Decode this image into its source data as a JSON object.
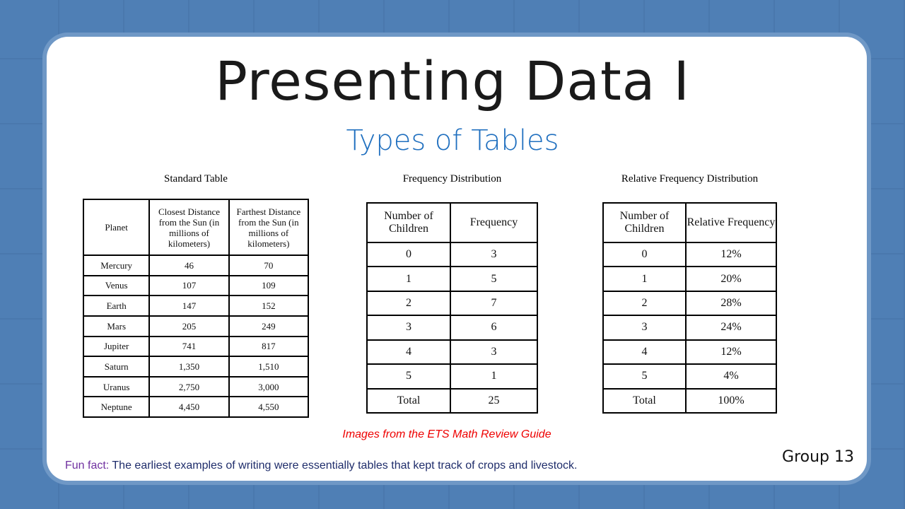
{
  "title": "Presenting Data I",
  "subtitle": "Types of Tables",
  "standard_table": {
    "caption": "Standard  Table",
    "headers": [
      "Planet",
      "Closest Distance from the Sun (in millions of kilometers)",
      "Farthest Distance from the Sun (in millions of kilometers)"
    ],
    "rows": [
      [
        "Mercury",
        "46",
        "70"
      ],
      [
        "Venus",
        "107",
        "109"
      ],
      [
        "Earth",
        "147",
        "152"
      ],
      [
        "Mars",
        "205",
        "249"
      ],
      [
        "Jupiter",
        "741",
        "817"
      ],
      [
        "Saturn",
        "1,350",
        "1,510"
      ],
      [
        "Uranus",
        "2,750",
        "3,000"
      ],
      [
        "Neptune",
        "4,450",
        "4,550"
      ]
    ]
  },
  "frequency_table": {
    "caption": "Frequency Distribution",
    "headers": [
      "Number of Children",
      "Frequency"
    ],
    "rows": [
      [
        "0",
        "3"
      ],
      [
        "1",
        "5"
      ],
      [
        "2",
        "7"
      ],
      [
        "3",
        "6"
      ],
      [
        "4",
        "3"
      ],
      [
        "5",
        "1"
      ],
      [
        "Total",
        "25"
      ]
    ]
  },
  "relative_table": {
    "caption": "Relative Frequency Distribution",
    "headers": [
      "Number of Children",
      "Relative Frequency"
    ],
    "rows": [
      [
        "0",
        "12%"
      ],
      [
        "1",
        "20%"
      ],
      [
        "2",
        "28%"
      ],
      [
        "3",
        "24%"
      ],
      [
        "4",
        "12%"
      ],
      [
        "5",
        "4%"
      ],
      [
        "Total",
        "100%"
      ]
    ]
  },
  "credit": "Images from the ETS Math Review Guide",
  "fun_fact": {
    "label": "Fun fact:",
    "text": " The earliest examples of writing were essentially tables that kept track of crops and livestock."
  },
  "group": "Group 13"
}
